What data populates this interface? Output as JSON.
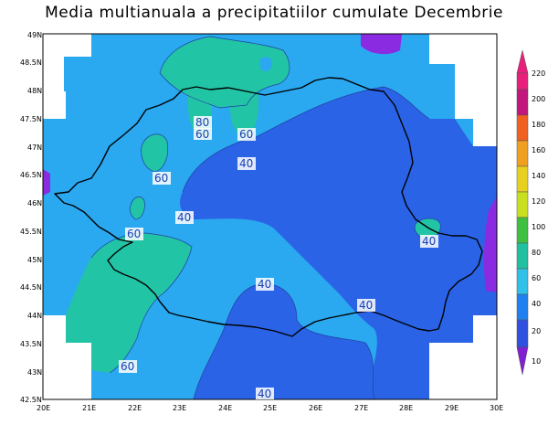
{
  "title": "Media multianuala a precipitatiilor cumulate Decembrie",
  "map": {
    "lat_ticks": [
      "49N",
      "48.5N",
      "48N",
      "47.5N",
      "47N",
      "46.5N",
      "46N",
      "45.5N",
      "45N",
      "44.5N",
      "44N",
      "43.5N",
      "43N",
      "42.5N"
    ],
    "lon_ticks": [
      "20E",
      "21E",
      "22E",
      "23E",
      "24E",
      "25E",
      "26E",
      "27E",
      "28E",
      "29E",
      "30E"
    ],
    "contour_labels": [
      {
        "text": "80"
      },
      {
        "text": "60"
      },
      {
        "text": "60"
      },
      {
        "text": "40"
      },
      {
        "text": "60"
      },
      {
        "text": "40"
      },
      {
        "text": "60"
      },
      {
        "text": "40"
      },
      {
        "text": "40"
      },
      {
        "text": "40"
      },
      {
        "text": "60"
      },
      {
        "text": "40"
      }
    ]
  },
  "colorbar": {
    "labels": [
      "220",
      "200",
      "180",
      "160",
      "140",
      "120",
      "100",
      "80",
      "60",
      "40",
      "20",
      "10"
    ],
    "colors": [
      "#e8207c",
      "#c0187c",
      "#f06020",
      "#f0a020",
      "#e8d020",
      "#c8e020",
      "#40c040",
      "#20c0a0",
      "#30c0e8",
      "#2080f0",
      "#3050e0",
      "#8020d0"
    ]
  }
}
